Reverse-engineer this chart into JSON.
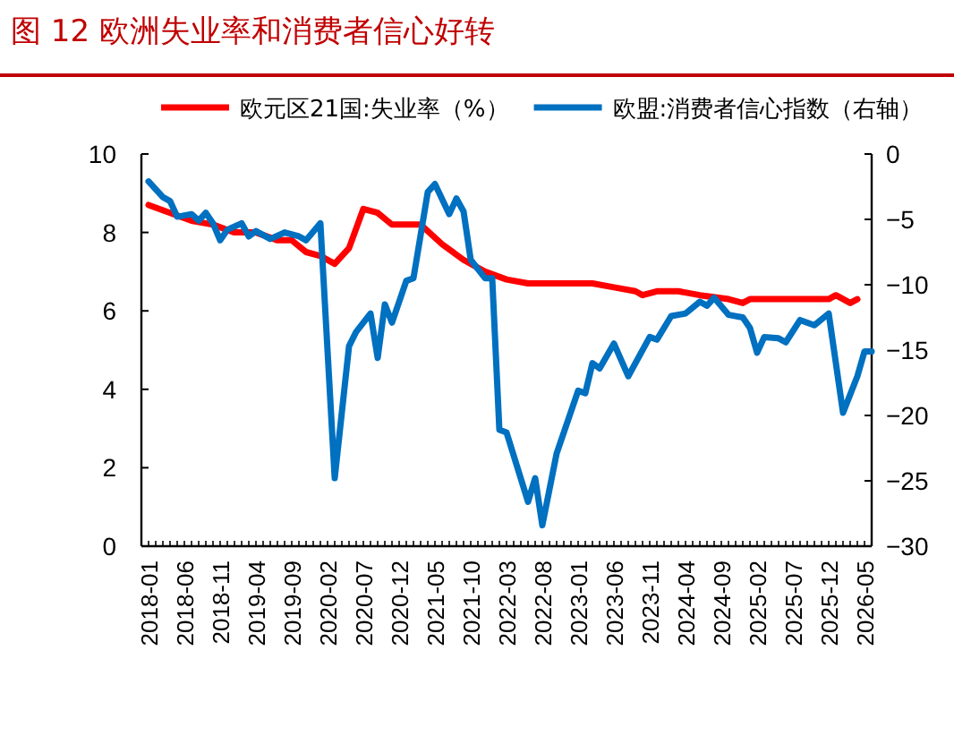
{
  "chart_data": {
    "type": "line",
    "title": "图 12   欧洲失业率和消费者信心好转",
    "xlim": [
      "2017-12",
      "2026-06"
    ],
    "xticks": [
      "2018-01",
      "2018-06",
      "2018-11",
      "2019-04",
      "2019-09",
      "2020-02",
      "2020-07",
      "2020-12",
      "2021-05",
      "2021-10",
      "2022-03",
      "2022-08",
      "2023-01",
      "2023-06",
      "2023-11",
      "2024-04",
      "2024-09",
      "2025-02",
      "2025-07",
      "2025-12",
      "2026-05"
    ],
    "ylim": [
      0,
      10
    ],
    "yticks": [
      0,
      2,
      4,
      6,
      8,
      10
    ],
    "y2lim": [
      -30,
      0
    ],
    "y2ticks": [
      {
        "value": -30,
        "label": "−30"
      },
      {
        "value": -25,
        "label": "−25"
      },
      {
        "value": -20,
        "label": "−20"
      },
      {
        "value": -15,
        "label": "−15"
      },
      {
        "value": -10,
        "label": "−10"
      },
      {
        "value": -5,
        "label": "−5"
      },
      0
    ],
    "legend": "top",
    "grid": false,
    "series": [
      {
        "name": "欧元区21国:失业率（%）",
        "color": "#ff0000",
        "x": [
          "2018-01",
          "2018-04",
          "2018-07",
          "2018-10",
          "2019-01",
          "2019-04",
          "2019-07",
          "2019-09",
          "2019-11",
          "2020-01",
          "2020-03",
          "2020-05",
          "2020-07",
          "2020-09",
          "2020-11",
          "2021-03",
          "2021-06",
          "2021-09",
          "2021-12",
          "2022-03",
          "2022-06",
          "2022-09",
          "2022-12",
          "2023-03",
          "2023-06",
          "2023-09",
          "2023-10",
          "2023-12",
          "2024-03",
          "2024-06",
          "2024-10",
          "2024-12",
          "2025-01",
          "2025-06",
          "2025-12",
          "2026-01",
          "2026-03",
          "2026-04"
        ],
        "values": [
          8.7,
          8.5,
          8.3,
          8.2,
          8.0,
          8.0,
          7.8,
          7.8,
          7.5,
          7.4,
          7.2,
          7.6,
          8.6,
          8.5,
          8.2,
          8.2,
          7.7,
          7.3,
          7.0,
          6.8,
          6.7,
          6.7,
          6.7,
          6.7,
          6.6,
          6.5,
          6.4,
          6.5,
          6.5,
          6.4,
          6.3,
          6.2,
          6.3,
          6.3,
          6.3,
          6.4,
          6.2,
          6.3
        ]
      },
      {
        "name": "欧盟:消费者信心指数（右轴）",
        "color": "#0070c0",
        "axis": "y2",
        "x": [
          "2018-01",
          "2018-03",
          "2018-04",
          "2018-05",
          "2018-07",
          "2018-08",
          "2018-09",
          "2018-10",
          "2018-11",
          "2018-12",
          "2019-02",
          "2019-03",
          "2019-04",
          "2019-06",
          "2019-08",
          "2019-10",
          "2019-11",
          "2020-01",
          "2020-03",
          "2020-05",
          "2020-06",
          "2020-08",
          "2020-09",
          "2020-10",
          "2020-11",
          "2021-01",
          "2021-02",
          "2021-04",
          "2021-05",
          "2021-07",
          "2021-08",
          "2021-09",
          "2021-10",
          "2021-12",
          "2022-01",
          "2022-02",
          "2022-03",
          "2022-06",
          "2022-07",
          "2022-08",
          "2022-10",
          "2023-01",
          "2023-02",
          "2023-03",
          "2023-04",
          "2023-06",
          "2023-08",
          "2023-11",
          "2023-12",
          "2024-02",
          "2024-04",
          "2024-06",
          "2024-07",
          "2024-08",
          "2024-10",
          "2024-12",
          "2025-01",
          "2025-02",
          "2025-03",
          "2025-05",
          "2025-06",
          "2025-08",
          "2025-10",
          "2025-12",
          "2026-02",
          "2026-04",
          "2026-05",
          "2026-06"
        ],
        "values": [
          -2.1,
          -3.3,
          -3.6,
          -4.8,
          -4.6,
          -5.1,
          -4.5,
          -5.3,
          -6.6,
          -5.8,
          -5.3,
          -6.3,
          -5.9,
          -6.5,
          -6.0,
          -6.3,
          -6.6,
          -5.3,
          -24.8,
          -14.7,
          -13.6,
          -12.2,
          -15.6,
          -11.5,
          -12.9,
          -9.7,
          -9.5,
          -2.9,
          -2.3,
          -4.6,
          -3.4,
          -4.4,
          -8.1,
          -9.5,
          -9.5,
          -21.1,
          -21.3,
          -26.6,
          -24.8,
          -28.4,
          -22.9,
          -18.1,
          -18.3,
          -16.0,
          -16.4,
          -14.5,
          -17.0,
          -14.0,
          -14.2,
          -12.4,
          -12.2,
          -11.3,
          -11.6,
          -11.0,
          -12.3,
          -12.5,
          -13.3,
          -15.2,
          -14.0,
          -14.1,
          -14.4,
          -12.7,
          -13.1,
          -12.2,
          -19.8,
          -17.0,
          -15.1,
          -15.1
        ]
      }
    ]
  }
}
